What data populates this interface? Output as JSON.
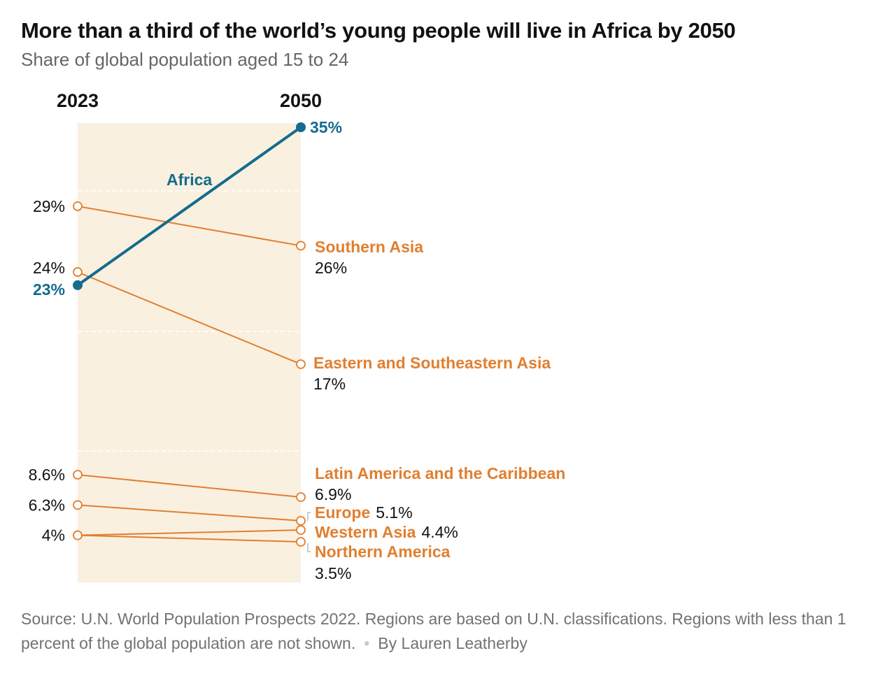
{
  "title": "More than a third of the world’s young people will live in Africa by 2050",
  "subtitle": "Share of global population aged 15 to 24",
  "colors": {
    "africa": "#146c8e",
    "other": "#e17f2f",
    "band": "#faf0e0",
    "grid": "#ffffff"
  },
  "chart_data": {
    "type": "slope",
    "x": [
      "2023",
      "2050"
    ],
    "y_unit": "percent of global population aged 15 to 24",
    "ylim": [
      0,
      35
    ],
    "series": [
      {
        "name": "Africa",
        "values": [
          23,
          35
        ],
        "start_label": "23%",
        "end_label": "35%",
        "highlight": true
      },
      {
        "name": "Southern Asia",
        "values": [
          29,
          26
        ],
        "start_label": "29%",
        "end_label": "26%"
      },
      {
        "name": "Eastern and Southeastern Asia",
        "values": [
          24,
          17
        ],
        "start_label": "24%",
        "end_label": "17%"
      },
      {
        "name": "Latin America and the Caribbean",
        "values": [
          8.6,
          6.9
        ],
        "start_label": "8.6%",
        "end_label": "6.9%"
      },
      {
        "name": "Europe",
        "values": [
          6.3,
          5.1
        ],
        "start_label": "6.3%",
        "end_label": "5.1%"
      },
      {
        "name": "Western Asia",
        "values": [
          4,
          4.4
        ],
        "start_label": "4%",
        "end_label": "4.4%"
      },
      {
        "name": "Northern America",
        "values": [
          4,
          3.5
        ],
        "start_label": "",
        "end_label": "3.5%"
      }
    ]
  },
  "footer": {
    "source": "Source: U.N. World Population Prospects 2022. Regions are based on U.N. classifications. Regions with less than 1 percent of the global population are not shown.",
    "byline": "By Lauren Leatherby"
  }
}
